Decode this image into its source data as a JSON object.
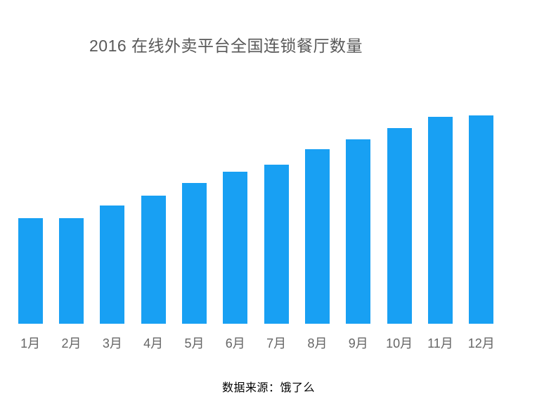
{
  "chart_data": {
    "type": "bar",
    "title": "2016 在线外卖平台全国连锁餐厅数量",
    "categories": [
      "1月",
      "2月",
      "3月",
      "4月",
      "5月",
      "6月",
      "7月",
      "8月",
      "9月",
      "10月",
      "11月",
      "12月"
    ],
    "values": [
      150,
      150,
      168,
      182,
      200,
      216,
      226,
      248,
      262,
      278,
      294,
      296
    ],
    "value_scale": "relative-pixel-height (chart displays no numeric value axis)",
    "xlabel": "",
    "ylabel": "",
    "grid": "off",
    "legend": "none",
    "plot_max_height": 310
  },
  "colors": {
    "bar": "#18a0f3",
    "title_text": "#595959",
    "axis_label_text": "#666666",
    "source_text": "#000000",
    "background": "#ffffff"
  },
  "footer": {
    "source": "数据来源：饿了么"
  }
}
